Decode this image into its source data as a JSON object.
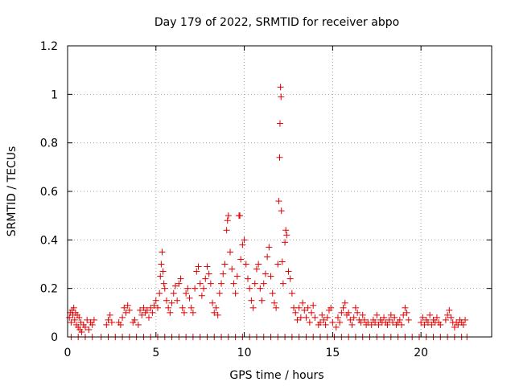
{
  "chart_data": {
    "type": "scatter",
    "title": "Day 179 of 2022, SRMTID for receiver abpo",
    "xlabel": "GPS time / hours",
    "ylabel": "SRMTID / TECUs",
    "xlim": [
      0,
      24
    ],
    "ylim": [
      0,
      1.2
    ],
    "xticks": [
      0,
      5,
      10,
      15,
      20
    ],
    "yticks": [
      0,
      0.2,
      0.4,
      0.6,
      0.8,
      1,
      1.2
    ],
    "ytick_labels": [
      "0",
      "0.2",
      "0.4",
      "0.6",
      "0.8",
      "1",
      "1.2"
    ],
    "grid": true,
    "marker": "+",
    "color": "#e00000",
    "series": [
      {
        "name": "SRMTID",
        "points": [
          [
            0.1,
            0.08
          ],
          [
            0.15,
            0.1
          ],
          [
            0.2,
            0.06
          ],
          [
            0.25,
            0.11
          ],
          [
            0.3,
            0.09
          ],
          [
            0.35,
            0.12
          ],
          [
            0.4,
            0.07
          ],
          [
            0.45,
            0.1
          ],
          [
            0.5,
            0.05
          ],
          [
            0.55,
            0.09
          ],
          [
            0.6,
            0.04
          ],
          [
            0.65,
            0.08
          ],
          [
            0.7,
            0.03
          ],
          [
            0.75,
            0.06
          ],
          [
            0.8,
            0.02
          ],
          [
            0.9,
            0.05
          ],
          [
            1.0,
            0.04
          ],
          [
            1.1,
            0.07
          ],
          [
            1.2,
            0.03
          ],
          [
            1.3,
            0.06
          ],
          [
            1.4,
            0.05
          ],
          [
            1.5,
            0.07
          ],
          [
            2.2,
            0.05
          ],
          [
            2.3,
            0.07
          ],
          [
            2.4,
            0.09
          ],
          [
            2.5,
            0.06
          ],
          [
            2.9,
            0.06
          ],
          [
            3.0,
            0.05
          ],
          [
            3.1,
            0.08
          ],
          [
            3.2,
            0.12
          ],
          [
            3.3,
            0.1
          ],
          [
            3.4,
            0.13
          ],
          [
            3.5,
            0.11
          ],
          [
            3.7,
            0.06
          ],
          [
            3.8,
            0.07
          ],
          [
            4.0,
            0.05
          ],
          [
            4.1,
            0.11
          ],
          [
            4.2,
            0.09
          ],
          [
            4.3,
            0.12
          ],
          [
            4.4,
            0.1
          ],
          [
            4.5,
            0.11
          ],
          [
            4.6,
            0.08
          ],
          [
            4.7,
            0.12
          ],
          [
            4.8,
            0.1
          ],
          [
            4.9,
            0.13
          ],
          [
            5.0,
            0.15
          ],
          [
            5.1,
            0.12
          ],
          [
            5.2,
            0.18
          ],
          [
            5.25,
            0.25
          ],
          [
            5.3,
            0.3
          ],
          [
            5.35,
            0.35
          ],
          [
            5.4,
            0.27
          ],
          [
            5.45,
            0.22
          ],
          [
            5.5,
            0.2
          ],
          [
            5.6,
            0.15
          ],
          [
            5.7,
            0.12
          ],
          [
            5.8,
            0.1
          ],
          [
            5.9,
            0.14
          ],
          [
            6.0,
            0.18
          ],
          [
            6.1,
            0.21
          ],
          [
            6.2,
            0.15
          ],
          [
            6.3,
            0.22
          ],
          [
            6.4,
            0.24
          ],
          [
            6.5,
            0.12
          ],
          [
            6.6,
            0.1
          ],
          [
            6.7,
            0.18
          ],
          [
            6.8,
            0.2
          ],
          [
            6.9,
            0.16
          ],
          [
            7.0,
            0.12
          ],
          [
            7.1,
            0.1
          ],
          [
            7.2,
            0.2
          ],
          [
            7.3,
            0.27
          ],
          [
            7.4,
            0.29
          ],
          [
            7.5,
            0.22
          ],
          [
            7.6,
            0.17
          ],
          [
            7.7,
            0.2
          ],
          [
            7.8,
            0.24
          ],
          [
            7.9,
            0.29
          ],
          [
            8.0,
            0.26
          ],
          [
            8.1,
            0.22
          ],
          [
            8.2,
            0.14
          ],
          [
            8.3,
            0.1
          ],
          [
            8.4,
            0.12
          ],
          [
            8.5,
            0.09
          ],
          [
            8.6,
            0.18
          ],
          [
            8.7,
            0.22
          ],
          [
            8.8,
            0.26
          ],
          [
            8.9,
            0.3
          ],
          [
            9.0,
            0.44
          ],
          [
            9.05,
            0.48
          ],
          [
            9.1,
            0.5
          ],
          [
            9.2,
            0.35
          ],
          [
            9.3,
            0.28
          ],
          [
            9.4,
            0.22
          ],
          [
            9.5,
            0.18
          ],
          [
            9.6,
            0.25
          ],
          [
            9.7,
            0.5
          ],
          [
            9.75,
            0.5
          ],
          [
            9.8,
            0.32
          ],
          [
            9.9,
            0.38
          ],
          [
            10.0,
            0.4
          ],
          [
            10.1,
            0.3
          ],
          [
            10.2,
            0.24
          ],
          [
            10.3,
            0.2
          ],
          [
            10.4,
            0.15
          ],
          [
            10.5,
            0.12
          ],
          [
            10.6,
            0.22
          ],
          [
            10.7,
            0.28
          ],
          [
            10.8,
            0.3
          ],
          [
            10.9,
            0.2
          ],
          [
            11.0,
            0.15
          ],
          [
            11.1,
            0.22
          ],
          [
            11.2,
            0.26
          ],
          [
            11.3,
            0.33
          ],
          [
            11.4,
            0.37
          ],
          [
            11.5,
            0.25
          ],
          [
            11.6,
            0.18
          ],
          [
            11.7,
            0.14
          ],
          [
            11.8,
            0.12
          ],
          [
            11.9,
            0.3
          ],
          [
            11.95,
            0.56
          ],
          [
            12.0,
            0.74
          ],
          [
            12.02,
            0.88
          ],
          [
            12.05,
            1.03
          ],
          [
            12.08,
            0.99
          ],
          [
            12.1,
            0.52
          ],
          [
            12.15,
            0.31
          ],
          [
            12.2,
            0.22
          ],
          [
            12.3,
            0.39
          ],
          [
            12.35,
            0.44
          ],
          [
            12.4,
            0.42
          ],
          [
            12.5,
            0.27
          ],
          [
            12.6,
            0.24
          ],
          [
            12.7,
            0.18
          ],
          [
            12.8,
            0.12
          ],
          [
            12.9,
            0.1
          ],
          [
            13.0,
            0.07
          ],
          [
            13.1,
            0.12
          ],
          [
            13.2,
            0.08
          ],
          [
            13.3,
            0.14
          ],
          [
            13.4,
            0.11
          ],
          [
            13.5,
            0.08
          ],
          [
            13.6,
            0.12
          ],
          [
            13.7,
            0.06
          ],
          [
            13.8,
            0.1
          ],
          [
            13.9,
            0.13
          ],
          [
            14.0,
            0.08
          ],
          [
            14.2,
            0.05
          ],
          [
            14.3,
            0.06
          ],
          [
            14.4,
            0.09
          ],
          [
            14.5,
            0.07
          ],
          [
            14.6,
            0.05
          ],
          [
            14.7,
            0.08
          ],
          [
            14.8,
            0.11
          ],
          [
            14.9,
            0.12
          ],
          [
            15.0,
            0.06
          ],
          [
            15.2,
            0.04
          ],
          [
            15.3,
            0.08
          ],
          [
            15.4,
            0.06
          ],
          [
            15.5,
            0.1
          ],
          [
            15.6,
            0.12
          ],
          [
            15.7,
            0.14
          ],
          [
            15.8,
            0.09
          ],
          [
            15.9,
            0.1
          ],
          [
            16.0,
            0.07
          ],
          [
            16.1,
            0.05
          ],
          [
            16.2,
            0.08
          ],
          [
            16.3,
            0.12
          ],
          [
            16.4,
            0.1
          ],
          [
            16.5,
            0.07
          ],
          [
            16.6,
            0.06
          ],
          [
            16.7,
            0.09
          ],
          [
            16.8,
            0.07
          ],
          [
            16.9,
            0.05
          ],
          [
            17.0,
            0.06
          ],
          [
            17.2,
            0.05
          ],
          [
            17.3,
            0.07
          ],
          [
            17.4,
            0.06
          ],
          [
            17.5,
            0.09
          ],
          [
            17.6,
            0.05
          ],
          [
            17.7,
            0.07
          ],
          [
            17.8,
            0.06
          ],
          [
            17.9,
            0.08
          ],
          [
            18.0,
            0.06
          ],
          [
            18.1,
            0.05
          ],
          [
            18.2,
            0.07
          ],
          [
            18.3,
            0.09
          ],
          [
            18.4,
            0.06
          ],
          [
            18.5,
            0.08
          ],
          [
            18.6,
            0.05
          ],
          [
            18.7,
            0.06
          ],
          [
            18.8,
            0.07
          ],
          [
            18.9,
            0.05
          ],
          [
            19.0,
            0.09
          ],
          [
            19.1,
            0.12
          ],
          [
            19.2,
            0.1
          ],
          [
            19.3,
            0.07
          ],
          [
            20.0,
            0.06
          ],
          [
            20.1,
            0.08
          ],
          [
            20.2,
            0.05
          ],
          [
            20.3,
            0.07
          ],
          [
            20.4,
            0.06
          ],
          [
            20.5,
            0.09
          ],
          [
            20.6,
            0.05
          ],
          [
            20.7,
            0.07
          ],
          [
            20.8,
            0.06
          ],
          [
            20.9,
            0.08
          ],
          [
            21.0,
            0.06
          ],
          [
            21.1,
            0.05
          ],
          [
            21.4,
            0.07
          ],
          [
            21.5,
            0.09
          ],
          [
            21.6,
            0.11
          ],
          [
            21.7,
            0.08
          ],
          [
            21.8,
            0.06
          ],
          [
            21.9,
            0.04
          ],
          [
            22.0,
            0.06
          ],
          [
            22.1,
            0.05
          ],
          [
            22.2,
            0.07
          ],
          [
            22.3,
            0.06
          ],
          [
            22.4,
            0.05
          ],
          [
            22.5,
            0.07
          ],
          [
            0.2,
            0
          ],
          [
            0.6,
            0
          ],
          [
            1.0,
            0
          ],
          [
            1.4,
            0
          ],
          [
            1.9,
            0
          ],
          [
            2.3,
            0
          ],
          [
            2.7,
            0
          ],
          [
            3.1,
            0
          ],
          [
            3.5,
            0
          ],
          [
            3.9,
            0
          ],
          [
            4.3,
            0
          ],
          [
            4.7,
            0
          ],
          [
            5.1,
            0
          ],
          [
            5.5,
            0
          ],
          [
            5.9,
            0
          ],
          [
            6.3,
            0
          ],
          [
            6.7,
            0
          ],
          [
            7.1,
            0
          ],
          [
            7.5,
            0
          ],
          [
            7.9,
            0
          ],
          [
            8.3,
            0
          ],
          [
            8.7,
            0
          ],
          [
            9.1,
            0
          ],
          [
            9.5,
            0
          ],
          [
            9.9,
            0
          ],
          [
            10.3,
            0
          ],
          [
            10.7,
            0
          ],
          [
            11.1,
            0
          ],
          [
            11.5,
            0
          ],
          [
            11.9,
            0
          ],
          [
            12.3,
            0
          ],
          [
            12.7,
            0
          ],
          [
            13.1,
            0
          ],
          [
            13.5,
            0
          ],
          [
            13.9,
            0
          ],
          [
            14.3,
            0
          ],
          [
            14.7,
            0
          ],
          [
            15.1,
            0
          ],
          [
            15.5,
            0
          ],
          [
            15.9,
            0
          ],
          [
            16.3,
            0
          ],
          [
            16.7,
            0
          ],
          [
            17.1,
            0
          ],
          [
            17.5,
            0
          ],
          [
            17.9,
            0
          ],
          [
            18.3,
            0
          ],
          [
            18.7,
            0
          ],
          [
            19.1,
            0
          ],
          [
            19.5,
            0
          ],
          [
            19.9,
            0
          ],
          [
            20.3,
            0
          ],
          [
            20.7,
            0
          ],
          [
            21.1,
            0
          ],
          [
            21.5,
            0
          ],
          [
            21.9,
            0
          ],
          [
            22.3,
            0
          ],
          [
            22.6,
            0
          ]
        ]
      }
    ]
  }
}
